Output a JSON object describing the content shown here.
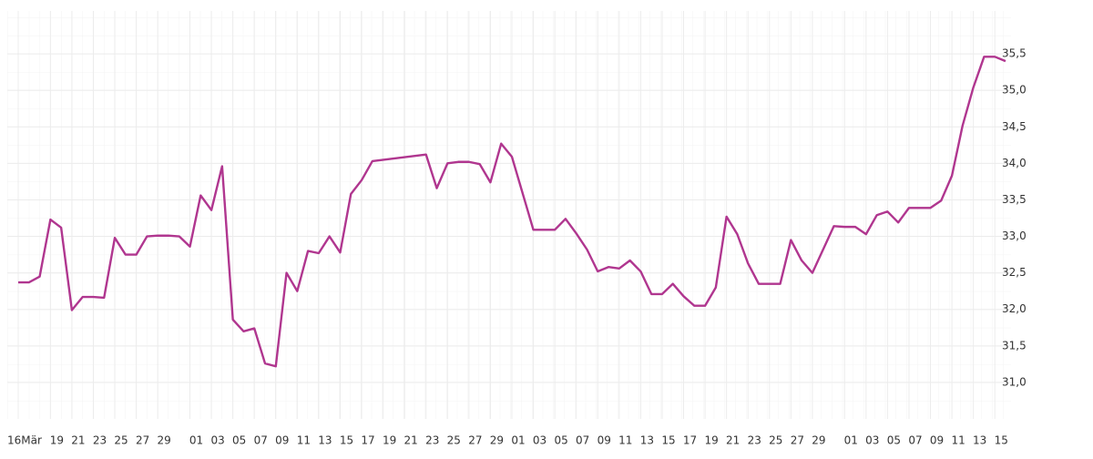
{
  "chart_data": {
    "type": "line",
    "x": [
      "03-16",
      "03-17",
      "03-18",
      "03-19",
      "03-20",
      "03-21",
      "03-22",
      "03-23",
      "03-24",
      "03-25",
      "03-26",
      "03-27",
      "03-28",
      "03-29",
      "03-30",
      "03-31",
      "04-01",
      "04-02",
      "04-03",
      "04-04",
      "04-05",
      "04-06",
      "04-07",
      "04-08",
      "04-09",
      "04-10",
      "04-11",
      "04-12",
      "04-13",
      "04-14",
      "04-15",
      "04-16",
      "04-17",
      "04-18",
      "04-23",
      "04-24",
      "04-25",
      "04-26",
      "04-27",
      "04-28",
      "04-29",
      "04-30",
      "05-01",
      "05-03",
      "05-04",
      "05-05",
      "05-06",
      "05-07",
      "05-08",
      "05-09",
      "05-10",
      "05-11",
      "05-12",
      "05-13",
      "05-14",
      "05-15",
      "05-16",
      "05-17",
      "05-18",
      "05-19",
      "05-20",
      "05-21",
      "05-22",
      "05-23",
      "05-24",
      "05-25",
      "05-26",
      "05-27",
      "05-28",
      "05-29",
      "05-31",
      "06-01",
      "06-02",
      "06-03",
      "06-04",
      "06-05",
      "06-06",
      "06-07",
      "06-08",
      "06-09",
      "06-10",
      "06-11",
      "06-12",
      "06-13",
      "06-14",
      "06-15",
      "06-16"
    ],
    "series": [
      {
        "color": "#b0368f",
        "values": [
          32.37,
          32.37,
          32.45,
          33.23,
          33.12,
          31.99,
          32.17,
          32.17,
          32.16,
          32.98,
          32.75,
          32.75,
          33.0,
          33.01,
          33.01,
          33.0,
          32.86,
          33.56,
          33.36,
          33.96,
          31.86,
          31.7,
          31.74,
          31.26,
          31.22,
          32.5,
          32.25,
          32.8,
          32.77,
          33.0,
          32.78,
          33.58,
          33.77,
          34.03,
          34.12,
          33.66,
          34.0,
          34.02,
          34.02,
          33.99,
          33.74,
          34.27,
          34.09,
          33.09,
          33.09,
          33.09,
          33.24,
          33.04,
          32.82,
          32.52,
          32.58,
          32.56,
          32.67,
          32.52,
          32.21,
          32.21,
          32.35,
          32.18,
          32.05,
          32.05,
          32.3,
          33.27,
          33.03,
          32.63,
          32.35,
          32.35,
          32.35,
          32.95,
          32.67,
          32.5,
          33.14,
          33.13,
          33.13,
          33.03,
          33.29,
          33.34,
          33.19,
          33.39,
          33.39,
          33.39,
          33.49,
          33.83,
          34.52,
          35.04,
          35.46,
          35.46,
          35.4
        ]
      }
    ],
    "xlim": [
      "03-16",
      "06-16"
    ],
    "xticks": [
      {
        "value": "03-16",
        "label": "16Mär"
      },
      {
        "value": "03-19",
        "label": "19"
      },
      {
        "value": "03-21",
        "label": "21"
      },
      {
        "value": "03-23",
        "label": "23"
      },
      {
        "value": "03-25",
        "label": "25"
      },
      {
        "value": "03-27",
        "label": "27"
      },
      {
        "value": "03-29",
        "label": "29"
      },
      {
        "value": "04-01",
        "label": "01"
      },
      {
        "value": "04-03",
        "label": "03"
      },
      {
        "value": "04-05",
        "label": "05"
      },
      {
        "value": "04-07",
        "label": "07"
      },
      {
        "value": "04-09",
        "label": "09"
      },
      {
        "value": "04-11",
        "label": "11"
      },
      {
        "value": "04-13",
        "label": "13"
      },
      {
        "value": "04-15",
        "label": "15"
      },
      {
        "value": "04-17",
        "label": "17"
      },
      {
        "value": "04-19",
        "label": "19"
      },
      {
        "value": "04-21",
        "label": "21"
      },
      {
        "value": "04-23",
        "label": "23"
      },
      {
        "value": "04-25",
        "label": "25"
      },
      {
        "value": "04-27",
        "label": "27"
      },
      {
        "value": "04-29",
        "label": "29"
      },
      {
        "value": "05-01",
        "label": "01"
      },
      {
        "value": "05-03",
        "label": "03"
      },
      {
        "value": "05-05",
        "label": "05"
      },
      {
        "value": "05-07",
        "label": "07"
      },
      {
        "value": "05-09",
        "label": "09"
      },
      {
        "value": "05-11",
        "label": "11"
      },
      {
        "value": "05-13",
        "label": "13"
      },
      {
        "value": "05-15",
        "label": "15"
      },
      {
        "value": "05-17",
        "label": "17"
      },
      {
        "value": "05-19",
        "label": "19"
      },
      {
        "value": "05-21",
        "label": "21"
      },
      {
        "value": "05-23",
        "label": "23"
      },
      {
        "value": "05-25",
        "label": "25"
      },
      {
        "value": "05-27",
        "label": "27"
      },
      {
        "value": "05-29",
        "label": "29"
      },
      {
        "value": "06-01",
        "label": "01"
      },
      {
        "value": "06-03",
        "label": "03"
      },
      {
        "value": "06-05",
        "label": "05"
      },
      {
        "value": "06-07",
        "label": "07"
      },
      {
        "value": "06-09",
        "label": "09"
      },
      {
        "value": "06-11",
        "label": "11"
      },
      {
        "value": "06-13",
        "label": "13"
      },
      {
        "value": "06-15",
        "label": "15"
      }
    ],
    "ylim": [
      30.5,
      36
    ],
    "yticks": [
      {
        "value": 31,
        "label": "31,0"
      },
      {
        "value": 31.5,
        "label": "31,5"
      },
      {
        "value": 32,
        "label": "32,0"
      },
      {
        "value": 32.5,
        "label": "32,5"
      },
      {
        "value": 33,
        "label": "33,0"
      },
      {
        "value": 33.5,
        "label": "33,5"
      },
      {
        "value": 34,
        "label": "34,0"
      },
      {
        "value": 34.5,
        "label": "34,5"
      },
      {
        "value": 35,
        "label": "35,0"
      },
      {
        "value": 35.5,
        "label": "35,5"
      }
    ],
    "grid": true
  }
}
